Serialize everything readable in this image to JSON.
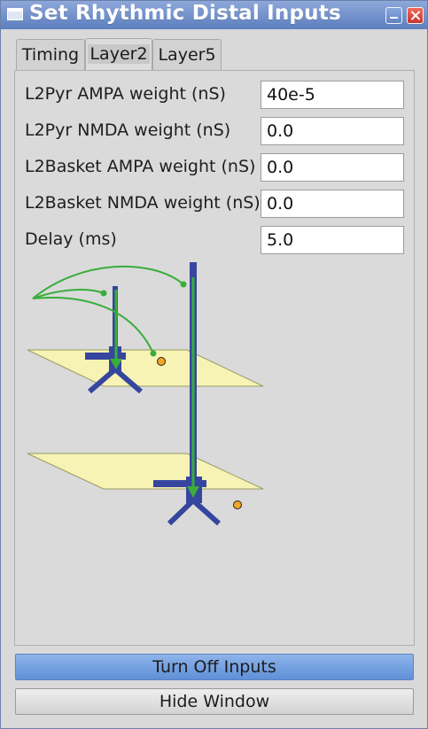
{
  "window": {
    "title": "Set Rhythmic Distal Inputs"
  },
  "tabs": [
    {
      "label": "Timing"
    },
    {
      "label": "Layer2"
    },
    {
      "label": "Layer5"
    }
  ],
  "fields": [
    {
      "label": "L2Pyr AMPA weight (nS)",
      "value": "40e-5"
    },
    {
      "label": "L2Pyr NMDA weight (nS)",
      "value": "0.0"
    },
    {
      "label": "L2Basket AMPA weight (nS)",
      "value": "0.0"
    },
    {
      "label": "L2Basket NMDA weight (nS)",
      "value": "0.0"
    },
    {
      "label": "Delay (ms)",
      "value": "5.0"
    }
  ],
  "buttons": {
    "turn_off": "Turn Off Inputs",
    "hide": "Hide Window"
  },
  "colors": {
    "titlebar": "#6b8cc9",
    "primary_button": "#7aa3e0",
    "plane_fill": "#f7f3b4",
    "neuron_blue": "#36469f",
    "input_green": "#3aad3a",
    "basket_orange": "#f5a623"
  }
}
